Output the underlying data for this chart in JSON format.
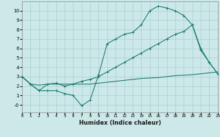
{
  "xlabel": "Humidex (Indice chaleur)",
  "bg_color": "#cce8e8",
  "grid_color": "#aacece",
  "line_color": "#1a7a6e",
  "line1_x": [
    0,
    1,
    2,
    3,
    4,
    5,
    6,
    7,
    8,
    9,
    10,
    11,
    12,
    13,
    14,
    15,
    16,
    17,
    18,
    19,
    20,
    21,
    22,
    23
  ],
  "line1_y": [
    3.0,
    2.2,
    1.5,
    1.5,
    1.5,
    1.2,
    1.0,
    -0.1,
    0.5,
    3.2,
    6.5,
    7.0,
    7.5,
    7.7,
    8.5,
    10.0,
    10.5,
    10.3,
    10.0,
    9.5,
    8.5,
    5.8,
    4.5,
    3.3
  ],
  "line2_x": [
    0,
    1,
    2,
    3,
    4,
    5,
    6,
    7,
    8,
    9,
    10,
    11,
    12,
    13,
    14,
    15,
    16,
    17,
    18,
    19,
    20,
    21,
    22,
    23
  ],
  "line2_y": [
    3.0,
    2.2,
    1.5,
    2.2,
    2.3,
    2.0,
    2.2,
    2.5,
    2.7,
    3.0,
    3.5,
    4.0,
    4.5,
    5.0,
    5.5,
    6.0,
    6.5,
    7.0,
    7.5,
    7.8,
    8.5,
    6.0,
    4.5,
    3.3
  ],
  "line3_x": [
    0,
    1,
    2,
    3,
    4,
    5,
    6,
    7,
    8,
    9,
    10,
    11,
    12,
    13,
    14,
    15,
    16,
    17,
    18,
    19,
    20,
    21,
    22,
    23
  ],
  "line3_y": [
    3.0,
    2.2,
    2.1,
    2.2,
    2.2,
    2.2,
    2.2,
    2.2,
    2.2,
    2.3,
    2.4,
    2.5,
    2.6,
    2.7,
    2.8,
    2.85,
    2.9,
    3.0,
    3.1,
    3.15,
    3.2,
    3.3,
    3.4,
    3.5
  ],
  "xlim": [
    0,
    23
  ],
  "ylim": [
    -0.8,
    11.0
  ],
  "yticks": [
    0,
    1,
    2,
    3,
    4,
    5,
    6,
    7,
    8,
    9,
    10
  ],
  "ytick_labels": [
    "-0",
    "1",
    "2",
    "3",
    "4",
    "5",
    "6",
    "7",
    "8",
    "9",
    "10"
  ],
  "xticks": [
    0,
    1,
    2,
    3,
    4,
    5,
    6,
    7,
    8,
    9,
    10,
    11,
    12,
    13,
    14,
    15,
    16,
    17,
    18,
    19,
    20,
    21,
    22,
    23
  ],
  "xtick_labels": [
    "0",
    "1",
    "2",
    "3",
    "4",
    "5",
    "6",
    "7",
    "8",
    "9",
    "10",
    "11",
    "12",
    "13",
    "14",
    "15",
    "16",
    "17",
    "18",
    "19",
    "20",
    "21",
    "22",
    "23"
  ]
}
